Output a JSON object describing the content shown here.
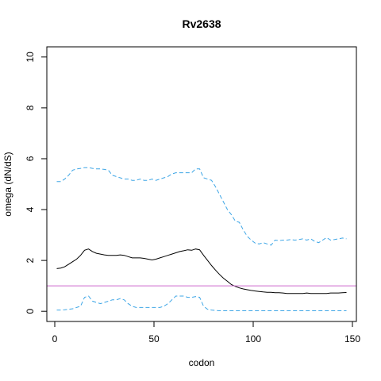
{
  "chart_data": {
    "type": "line",
    "title": "Rv2638",
    "xlabel": "codon",
    "ylabel": "omega (dN/dS)",
    "xlim": [
      -4,
      152
    ],
    "ylim": [
      -0.4,
      10.4
    ],
    "xticks": [
      0,
      50,
      100,
      150
    ],
    "yticks": [
      0,
      2,
      4,
      6,
      8,
      10
    ],
    "reference_line": {
      "y": 1,
      "color": "#cc66cc"
    },
    "series": [
      {
        "role": "upper-bound",
        "style": "dashed",
        "color": "#3ea6e6",
        "x": [
          1,
          3,
          5,
          7,
          9,
          11,
          13,
          15,
          17,
          19,
          21,
          23,
          25,
          27,
          29,
          31,
          33,
          35,
          37,
          39,
          41,
          43,
          45,
          47,
          49,
          51,
          53,
          55,
          57,
          59,
          61,
          63,
          65,
          67,
          69,
          71,
          73,
          75,
          77,
          79,
          81,
          83,
          85,
          87,
          89,
          91,
          93,
          95,
          97,
          99,
          101,
          103,
          105,
          107,
          109,
          111,
          113,
          115,
          117,
          119,
          121,
          123,
          125,
          127,
          129,
          131,
          133,
          135,
          137,
          139,
          141,
          143,
          145,
          147
        ],
        "y": [
          5.1,
          5.1,
          5.2,
          5.35,
          5.55,
          5.6,
          5.62,
          5.65,
          5.65,
          5.62,
          5.6,
          5.6,
          5.58,
          5.55,
          5.35,
          5.3,
          5.25,
          5.2,
          5.2,
          5.15,
          5.15,
          5.2,
          5.15,
          5.15,
          5.2,
          5.15,
          5.2,
          5.25,
          5.3,
          5.4,
          5.45,
          5.45,
          5.45,
          5.45,
          5.45,
          5.6,
          5.6,
          5.25,
          5.2,
          5.15,
          4.9,
          4.6,
          4.3,
          4.0,
          3.8,
          3.55,
          3.5,
          3.2,
          2.95,
          2.8,
          2.68,
          2.65,
          2.7,
          2.65,
          2.6,
          2.8,
          2.78,
          2.8,
          2.8,
          2.82,
          2.8,
          2.82,
          2.85,
          2.8,
          2.85,
          2.75,
          2.7,
          2.8,
          2.9,
          2.8,
          2.82,
          2.85,
          2.88,
          2.85
        ]
      },
      {
        "role": "omega",
        "style": "solid",
        "color": "#000000",
        "x": [
          1,
          3,
          5,
          7,
          9,
          11,
          13,
          15,
          17,
          19,
          21,
          23,
          25,
          27,
          29,
          31,
          33,
          35,
          37,
          39,
          41,
          43,
          45,
          47,
          49,
          51,
          53,
          55,
          57,
          59,
          61,
          63,
          65,
          67,
          69,
          71,
          73,
          75,
          77,
          79,
          81,
          83,
          85,
          87,
          89,
          91,
          93,
          95,
          97,
          99,
          101,
          103,
          105,
          107,
          109,
          111,
          113,
          115,
          117,
          119,
          121,
          123,
          125,
          127,
          129,
          131,
          133,
          135,
          137,
          139,
          141,
          143,
          145,
          147
        ],
        "y": [
          1.68,
          1.7,
          1.75,
          1.85,
          1.95,
          2.05,
          2.2,
          2.4,
          2.45,
          2.35,
          2.28,
          2.25,
          2.22,
          2.2,
          2.2,
          2.2,
          2.22,
          2.2,
          2.15,
          2.1,
          2.1,
          2.1,
          2.08,
          2.05,
          2.02,
          2.05,
          2.1,
          2.15,
          2.2,
          2.25,
          2.3,
          2.35,
          2.38,
          2.42,
          2.4,
          2.45,
          2.42,
          2.2,
          2.0,
          1.8,
          1.62,
          1.45,
          1.3,
          1.18,
          1.05,
          0.98,
          0.92,
          0.88,
          0.85,
          0.82,
          0.8,
          0.78,
          0.76,
          0.75,
          0.75,
          0.73,
          0.73,
          0.72,
          0.7,
          0.7,
          0.7,
          0.7,
          0.7,
          0.72,
          0.7,
          0.7,
          0.7,
          0.7,
          0.7,
          0.72,
          0.72,
          0.72,
          0.73,
          0.74
        ]
      },
      {
        "role": "lower-bound",
        "style": "dashed",
        "color": "#3ea6e6",
        "x": [
          1,
          3,
          5,
          7,
          9,
          11,
          13,
          15,
          17,
          19,
          21,
          23,
          25,
          27,
          29,
          31,
          33,
          35,
          37,
          39,
          41,
          43,
          45,
          47,
          49,
          51,
          53,
          55,
          57,
          59,
          61,
          63,
          65,
          67,
          69,
          71,
          73,
          75,
          77,
          79,
          81,
          83,
          85,
          87,
          89,
          91,
          93,
          95,
          97,
          99,
          101,
          103,
          105,
          107,
          109,
          111,
          113,
          115,
          117,
          119,
          121,
          123,
          125,
          127,
          129,
          131,
          133,
          135,
          137,
          139,
          141,
          143,
          145,
          147
        ],
        "y": [
          0.05,
          0.05,
          0.06,
          0.08,
          0.1,
          0.15,
          0.2,
          0.55,
          0.6,
          0.4,
          0.35,
          0.3,
          0.35,
          0.4,
          0.45,
          0.45,
          0.5,
          0.45,
          0.3,
          0.2,
          0.15,
          0.15,
          0.15,
          0.15,
          0.15,
          0.15,
          0.15,
          0.2,
          0.3,
          0.45,
          0.6,
          0.6,
          0.6,
          0.55,
          0.55,
          0.58,
          0.55,
          0.2,
          0.08,
          0.05,
          0.03,
          0.02,
          0.02,
          0.02,
          0.02,
          0.02,
          0.02,
          0.02,
          0.02,
          0.02,
          0.02,
          0.02,
          0.02,
          0.02,
          0.02,
          0.02,
          0.02,
          0.02,
          0.02,
          0.02,
          0.02,
          0.02,
          0.02,
          0.02,
          0.02,
          0.02,
          0.02,
          0.02,
          0.02,
          0.02,
          0.02,
          0.02,
          0.02,
          0.02
        ]
      }
    ]
  }
}
